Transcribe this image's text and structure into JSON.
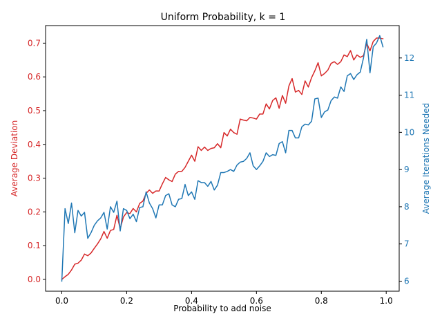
{
  "chart_data": {
    "type": "line",
    "title": "Uniform Probability, k = 1",
    "xlabel": "Probability to add noise",
    "ylabel_left": "Average Deviation",
    "ylabel_right": "Average Iterations Needed",
    "xlim": [
      -0.05,
      1.04
    ],
    "ylim_left": [
      -0.035,
      0.752
    ],
    "ylim_right": [
      5.73,
      12.87
    ],
    "x_ticks": [
      0.0,
      0.2,
      0.4,
      0.6,
      0.8,
      1.0
    ],
    "x_tick_labels": [
      "0.0",
      "0.2",
      "0.4",
      "0.6",
      "0.8",
      "1.0"
    ],
    "y_left_ticks": [
      0.0,
      0.1,
      0.2,
      0.3,
      0.4,
      0.5,
      0.6,
      0.7
    ],
    "y_left_tick_labels": [
      "0.0",
      "0.1",
      "0.2",
      "0.3",
      "0.4",
      "0.5",
      "0.6",
      "0.7"
    ],
    "y_right_ticks": [
      6,
      7,
      8,
      9,
      10,
      11,
      12
    ],
    "y_right_tick_labels": [
      "6",
      "7",
      "8",
      "9",
      "10",
      "11",
      "12"
    ],
    "grid": false,
    "colors": {
      "left": "#d62728",
      "right": "#1f77b4",
      "axis": "#000000"
    },
    "x": [
      0.0,
      0.01,
      0.02,
      0.03,
      0.04,
      0.05,
      0.06,
      0.07,
      0.08,
      0.09,
      0.1,
      0.11,
      0.12,
      0.13,
      0.14,
      0.15,
      0.16,
      0.17,
      0.18,
      0.19,
      0.2,
      0.21,
      0.22,
      0.23,
      0.24,
      0.25,
      0.26,
      0.27,
      0.28,
      0.29,
      0.3,
      0.31,
      0.32,
      0.33,
      0.34,
      0.35,
      0.36,
      0.37,
      0.38,
      0.39,
      0.4,
      0.41,
      0.42,
      0.43,
      0.44,
      0.45,
      0.46,
      0.47,
      0.48,
      0.49,
      0.5,
      0.51,
      0.52,
      0.53,
      0.54,
      0.55,
      0.56,
      0.57,
      0.58,
      0.59,
      0.6,
      0.61,
      0.62,
      0.63,
      0.64,
      0.65,
      0.66,
      0.67,
      0.68,
      0.69,
      0.7,
      0.71,
      0.72,
      0.73,
      0.74,
      0.75,
      0.76,
      0.77,
      0.78,
      0.79,
      0.8,
      0.81,
      0.82,
      0.83,
      0.84,
      0.85,
      0.86,
      0.87,
      0.88,
      0.89,
      0.9,
      0.91,
      0.92,
      0.93,
      0.94,
      0.95,
      0.96,
      0.97,
      0.98,
      0.99
    ],
    "series": [
      {
        "name": "Average Deviation",
        "axis": "left",
        "values": [
          0.0,
          0.008,
          0.015,
          0.028,
          0.045,
          0.048,
          0.057,
          0.075,
          0.07,
          0.078,
          0.092,
          0.105,
          0.12,
          0.142,
          0.122,
          0.145,
          0.148,
          0.19,
          0.15,
          0.185,
          0.198,
          0.195,
          0.21,
          0.2,
          0.225,
          0.232,
          0.255,
          0.265,
          0.255,
          0.262,
          0.262,
          0.283,
          0.302,
          0.295,
          0.29,
          0.312,
          0.32,
          0.32,
          0.332,
          0.35,
          0.368,
          0.35,
          0.393,
          0.382,
          0.392,
          0.382,
          0.388,
          0.39,
          0.402,
          0.39,
          0.435,
          0.425,
          0.445,
          0.435,
          0.43,
          0.475,
          0.472,
          0.47,
          0.48,
          0.478,
          0.475,
          0.49,
          0.49,
          0.52,
          0.505,
          0.53,
          0.538,
          0.507,
          0.545,
          0.522,
          0.573,
          0.595,
          0.555,
          0.56,
          0.548,
          0.588,
          0.57,
          0.598,
          0.618,
          0.642,
          0.603,
          0.61,
          0.62,
          0.64,
          0.645,
          0.637,
          0.645,
          0.665,
          0.66,
          0.678,
          0.65,
          0.665,
          0.658,
          0.663,
          0.7,
          0.677,
          0.705,
          0.715,
          0.715,
          0.713
        ]
      },
      {
        "name": "Average Iterations Needed",
        "axis": "right",
        "values": [
          6.0,
          7.95,
          7.55,
          8.1,
          7.3,
          7.9,
          7.75,
          7.85,
          7.15,
          7.3,
          7.5,
          7.62,
          7.7,
          7.85,
          7.4,
          8.0,
          7.85,
          8.15,
          7.35,
          7.95,
          7.9,
          7.68,
          7.8,
          7.6,
          7.98,
          8.0,
          8.4,
          8.1,
          7.95,
          7.7,
          8.05,
          8.05,
          8.3,
          8.35,
          8.05,
          8.0,
          8.2,
          8.22,
          8.6,
          8.3,
          8.4,
          8.2,
          8.7,
          8.65,
          8.65,
          8.55,
          8.68,
          8.45,
          8.58,
          8.92,
          8.92,
          8.95,
          9.0,
          8.95,
          9.12,
          9.2,
          9.22,
          9.3,
          9.45,
          9.1,
          9.0,
          9.1,
          9.22,
          9.45,
          9.35,
          9.4,
          9.38,
          9.7,
          9.75,
          9.45,
          10.05,
          10.05,
          9.85,
          9.85,
          10.15,
          10.22,
          10.2,
          10.3,
          10.9,
          10.92,
          10.4,
          10.55,
          10.6,
          10.85,
          10.95,
          10.92,
          11.22,
          11.1,
          11.52,
          11.58,
          11.42,
          11.55,
          11.62,
          12.0,
          12.5,
          11.6,
          12.3,
          12.4,
          12.6,
          12.3
        ]
      }
    ]
  }
}
